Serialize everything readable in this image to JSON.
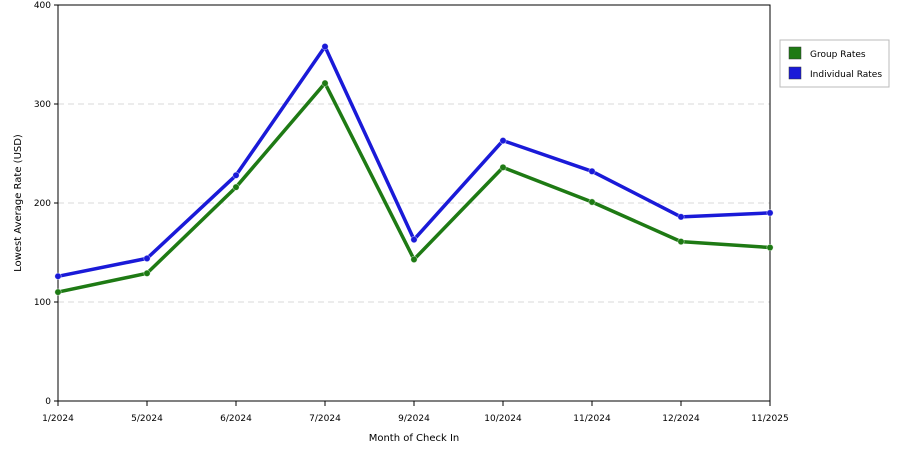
{
  "chart_data": {
    "type": "line",
    "title": "",
    "xlabel": "Month of Check In",
    "ylabel": "Lowest Average Rate (USD)",
    "categories": [
      "1/2024",
      "5/2024",
      "6/2024",
      "7/2024",
      "9/2024",
      "10/2024",
      "11/2024",
      "12/2024",
      "11/2025"
    ],
    "ylim": [
      0,
      400
    ],
    "yticks": [
      0,
      100,
      200,
      300,
      400
    ],
    "grid": "horizontal dashed",
    "legend_position": "right",
    "series": [
      {
        "name": "Group Rates",
        "color": "#1e7a14",
        "values": [
          110,
          129,
          216,
          321,
          143,
          236,
          201,
          161,
          155
        ]
      },
      {
        "name": "Individual Rates",
        "color": "#1a1ad8",
        "values": [
          126,
          144,
          228,
          358,
          163,
          263,
          232,
          186,
          190
        ]
      }
    ]
  }
}
